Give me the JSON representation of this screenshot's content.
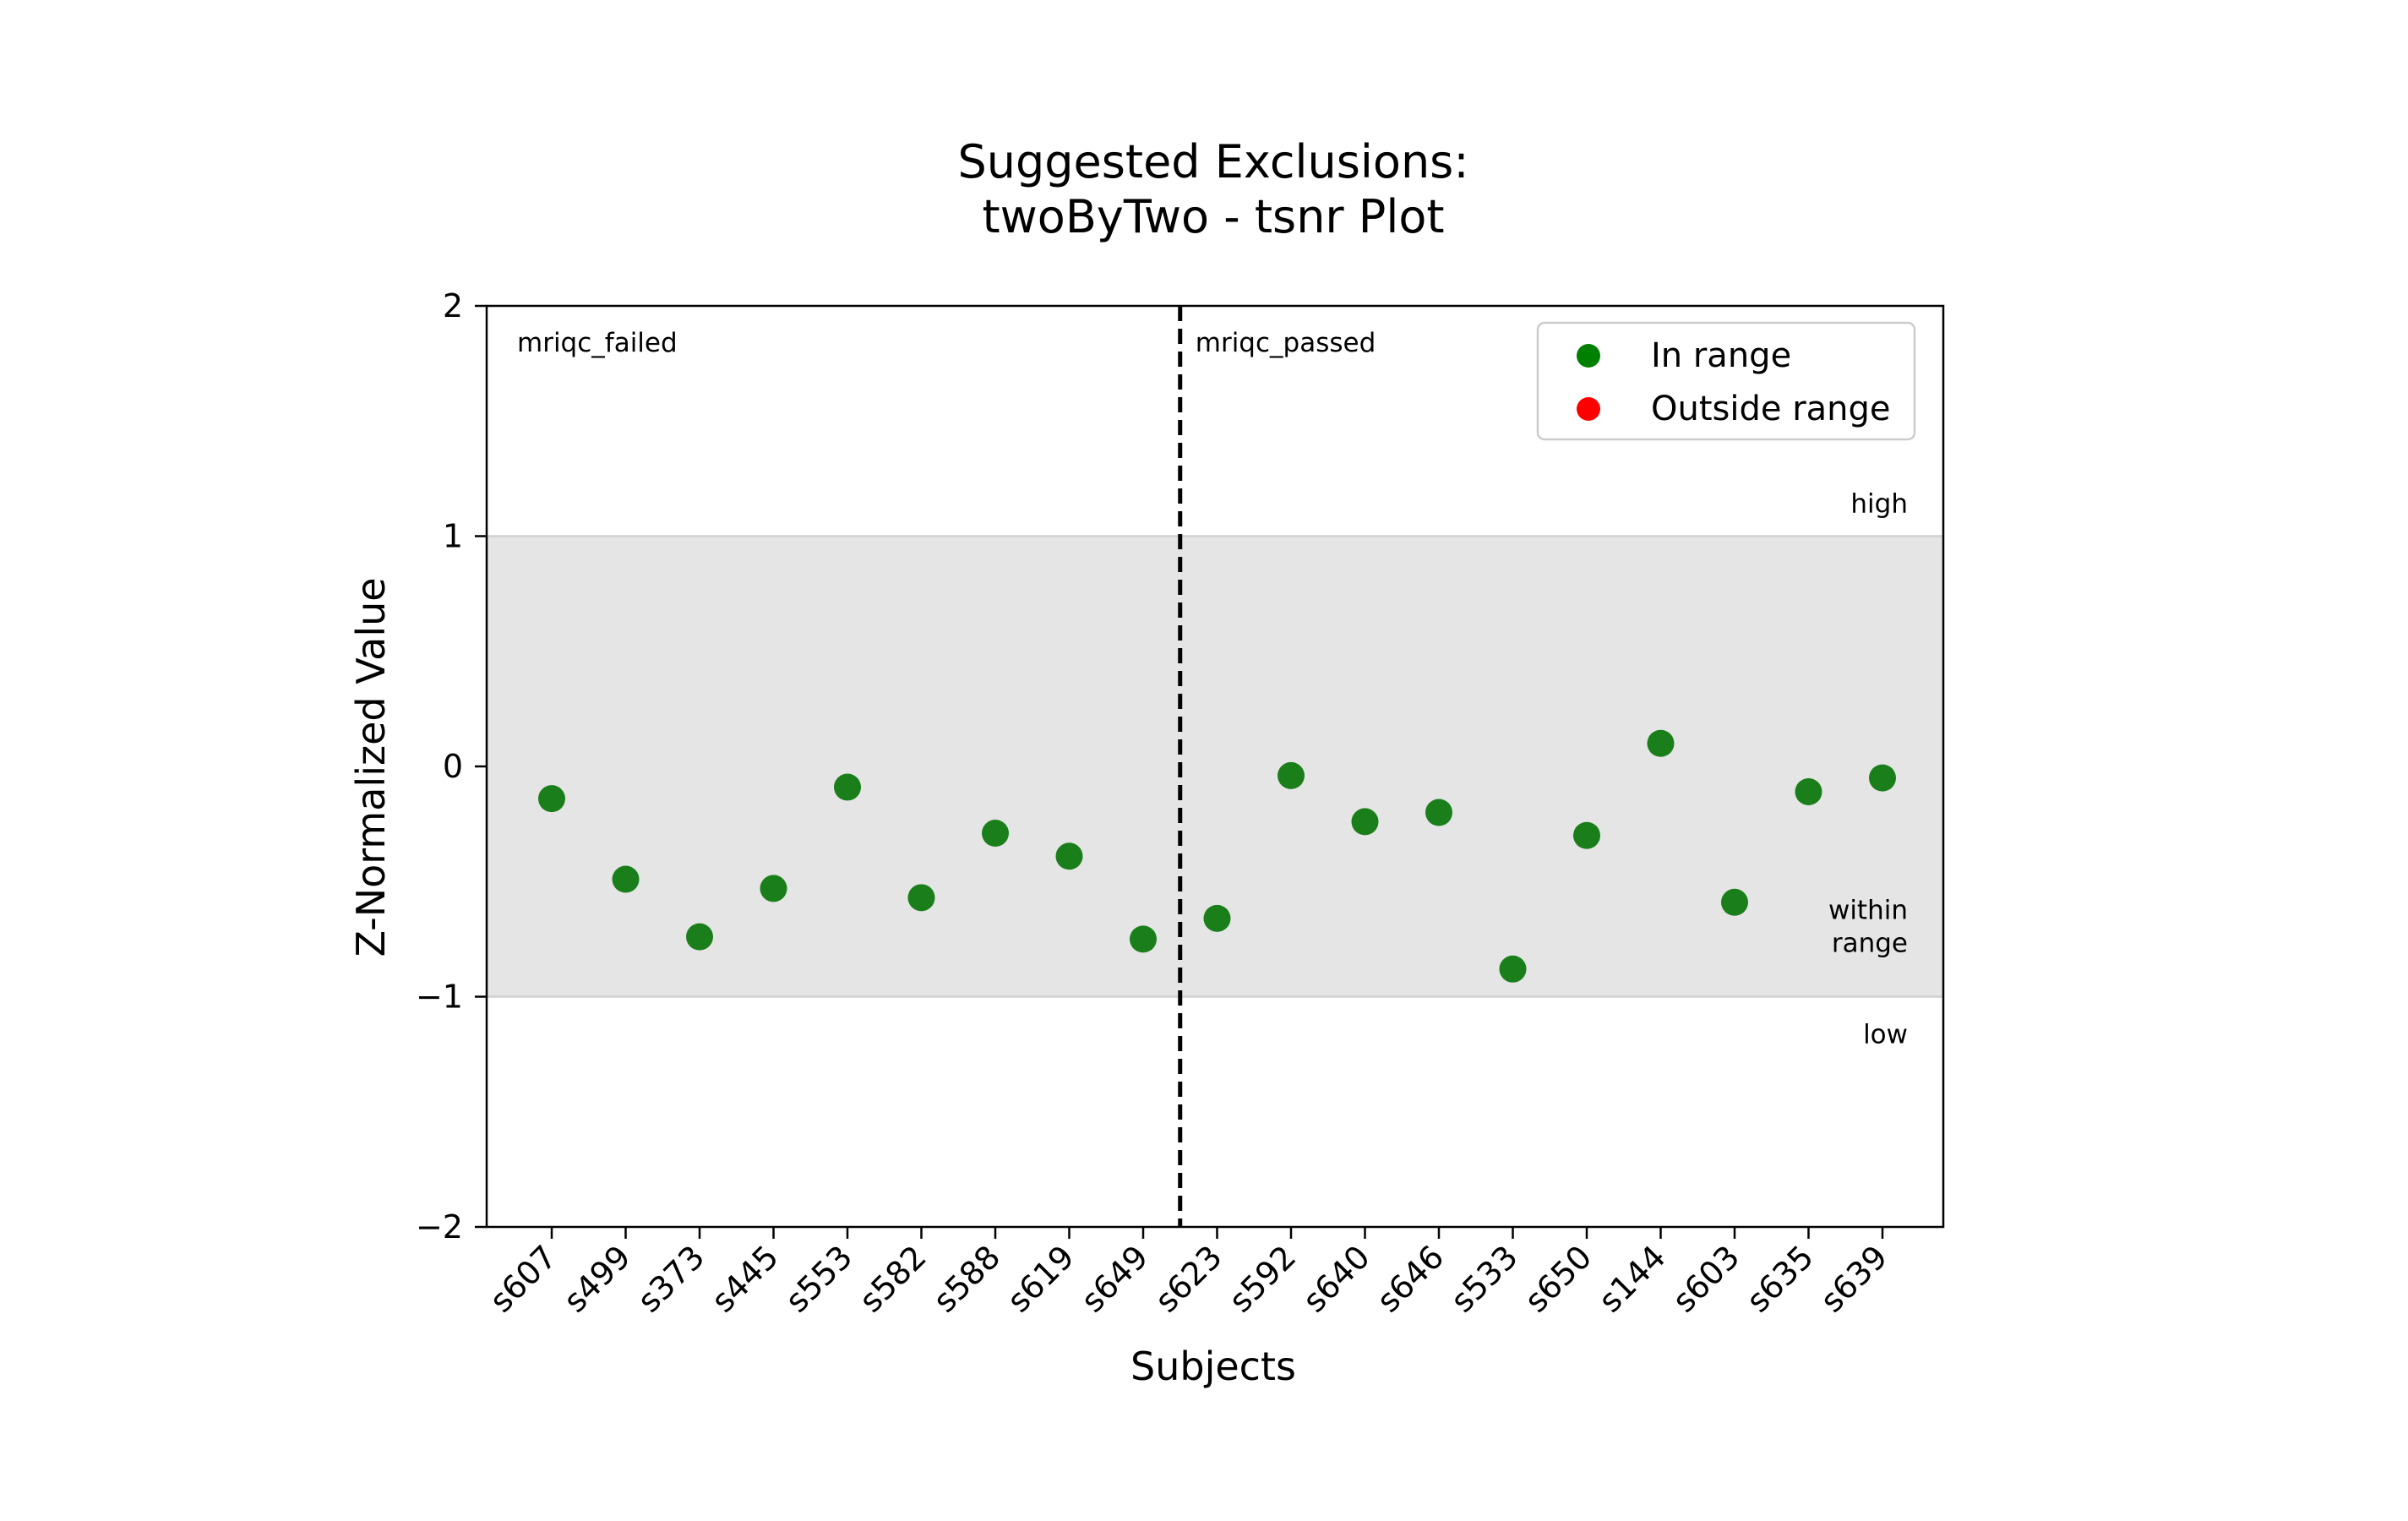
{
  "chart_data": {
    "type": "scatter",
    "title_lines": [
      "Suggested Exclusions:",
      "twoByTwo - tsnr Plot"
    ],
    "xlabel": "Subjects",
    "ylabel": "Z-Normalized Value",
    "ylim": [
      -2,
      2
    ],
    "yticks": [
      2,
      1,
      0,
      -1,
      -2
    ],
    "ytick_labels": [
      "2",
      "1",
      "0",
      "−1",
      "−2"
    ],
    "categories": [
      "s607",
      "s499",
      "s373",
      "s445",
      "s553",
      "s582",
      "s588",
      "s619",
      "s649",
      "s623",
      "s592",
      "s640",
      "s646",
      "s533",
      "s650",
      "s144",
      "s603",
      "s635",
      "s639"
    ],
    "values": [
      -0.14,
      -0.49,
      -0.74,
      -0.53,
      -0.09,
      -0.57,
      -0.29,
      -0.39,
      -0.75,
      -0.66,
      -0.04,
      -0.24,
      -0.2,
      -0.88,
      -0.3,
      0.1,
      -0.59,
      -0.11,
      -0.05
    ],
    "range_band": {
      "low": -1,
      "high": 1,
      "color": "#e5e5e5"
    },
    "divider_after_index": 8,
    "group_labels": [
      "mriqc_failed",
      "mriqc_passed"
    ],
    "band_labels": {
      "high": "high",
      "within": [
        "within",
        "range"
      ],
      "low": "low"
    },
    "colors": {
      "in_range": "#1a7f1a",
      "outside_range": "#ff0000",
      "legend_in_range": "#008000"
    },
    "legend": {
      "position": "upper-right",
      "entries": [
        {
          "label": "In range",
          "color": "#008000"
        },
        {
          "label": "Outside range",
          "color": "#ff0000"
        }
      ]
    }
  }
}
